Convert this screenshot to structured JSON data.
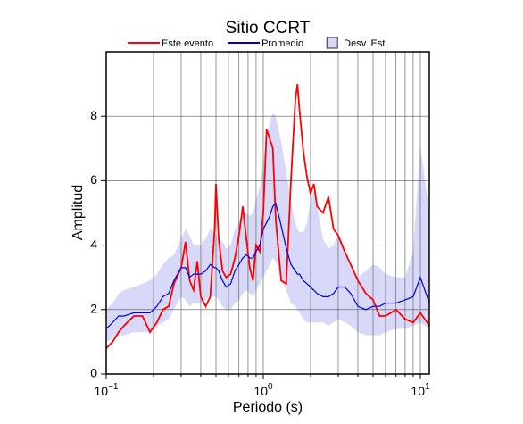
{
  "chart_data": {
    "type": "line",
    "title": "Sitio CCRT",
    "xlabel": "Periodo (s)",
    "ylabel": "Amplitud",
    "xlog": true,
    "grid": true,
    "xlim": [
      0.1,
      11.4
    ],
    "ylim": [
      0,
      10
    ],
    "xticks": [
      {
        "value": 0.1,
        "label": "10−1"
      },
      {
        "value": 1,
        "label": "100"
      },
      {
        "value": 10,
        "label": "101"
      }
    ],
    "xgrid": [
      0.2,
      0.3,
      0.4,
      0.5,
      0.6,
      0.7,
      0.8,
      0.9,
      2,
      3,
      4,
      5,
      6,
      7,
      8,
      9
    ],
    "yticks": [
      0,
      2,
      4,
      6,
      8
    ],
    "x": [
      0.1,
      0.11,
      0.12,
      0.13,
      0.15,
      0.17,
      0.19,
      0.21,
      0.23,
      0.25,
      0.27,
      0.3,
      0.32,
      0.34,
      0.36,
      0.38,
      0.4,
      0.43,
      0.46,
      0.49,
      0.5,
      0.52,
      0.55,
      0.58,
      0.62,
      0.66,
      0.7,
      0.74,
      0.78,
      0.82,
      0.86,
      0.9,
      0.95,
      1.0,
      1.05,
      1.1,
      1.15,
      1.2,
      1.3,
      1.4,
      1.5,
      1.6,
      1.65,
      1.7,
      1.8,
      1.9,
      2.0,
      2.1,
      2.2,
      2.4,
      2.6,
      2.8,
      3.0,
      3.3,
      3.6,
      4.0,
      4.5,
      5.0,
      5.5,
      6.0,
      7.0,
      8.0,
      9.0,
      10,
      11.4
    ],
    "series": [
      {
        "name": "Este evento",
        "color": "#ff0000",
        "values": [
          0.8,
          1.0,
          1.3,
          1.5,
          1.8,
          1.8,
          1.3,
          1.6,
          2.0,
          2.1,
          2.8,
          3.3,
          4.1,
          2.9,
          2.6,
          3.5,
          2.4,
          2.1,
          2.4,
          4.5,
          5.9,
          4.2,
          3.2,
          3.0,
          3.1,
          3.6,
          4.3,
          5.2,
          4.2,
          3.3,
          2.9,
          4.0,
          3.8,
          5.0,
          7.6,
          7.3,
          7.0,
          4.8,
          2.9,
          2.8,
          6.0,
          8.5,
          9.0,
          8.2,
          6.9,
          6.1,
          5.6,
          5.9,
          5.2,
          5.0,
          5.5,
          4.5,
          4.3,
          3.8,
          3.4,
          2.9,
          2.5,
          2.3,
          1.8,
          1.8,
          2.0,
          1.7,
          1.6,
          1.9,
          1.5
        ]
      },
      {
        "name": "Promedio",
        "color": "#0000dd",
        "values": [
          1.4,
          1.6,
          1.8,
          1.8,
          1.9,
          1.9,
          1.9,
          2.1,
          2.4,
          2.5,
          2.9,
          3.3,
          3.3,
          3.0,
          3.1,
          3.1,
          3.1,
          3.2,
          3.4,
          3.3,
          3.3,
          3.2,
          2.9,
          2.7,
          2.8,
          3.2,
          3.4,
          3.6,
          3.7,
          3.6,
          3.6,
          3.8,
          4.0,
          4.5,
          4.7,
          4.9,
          5.2,
          5.3,
          4.6,
          3.9,
          3.4,
          3.2,
          3.1,
          3.1,
          2.9,
          2.8,
          2.7,
          2.6,
          2.5,
          2.4,
          2.4,
          2.5,
          2.7,
          2.7,
          2.5,
          2.1,
          2.0,
          2.1,
          2.1,
          2.2,
          2.2,
          2.3,
          2.4,
          3.0,
          2.2
        ]
      },
      {
        "name": "Desv. Est.",
        "color": "#d8d8f8",
        "high": [
          2.0,
          2.2,
          2.5,
          2.6,
          2.7,
          2.8,
          2.9,
          3.1,
          3.4,
          3.6,
          3.7,
          4.2,
          4.5,
          4.3,
          4.0,
          4.0,
          4.0,
          4.2,
          4.5,
          4.4,
          4.3,
          4.2,
          4.1,
          3.9,
          4.0,
          4.5,
          4.7,
          5.0,
          5.0,
          4.9,
          5.0,
          5.4,
          5.8,
          6.6,
          7.2,
          7.8,
          8.1,
          8.0,
          7.2,
          6.3,
          5.3,
          4.7,
          4.5,
          4.4,
          4.4,
          4.7,
          5.4,
          5.7,
          5.2,
          4.2,
          3.9,
          4.0,
          4.3,
          3.8,
          3.4,
          3.0,
          3.2,
          3.4,
          3.3,
          3.1,
          3.0,
          3.0,
          3.8,
          7.1,
          5.0
        ],
        "low": [
          1.0,
          1.1,
          1.2,
          1.2,
          1.3,
          1.3,
          1.3,
          1.5,
          1.6,
          1.7,
          2.0,
          2.4,
          2.3,
          2.1,
          2.2,
          2.2,
          2.2,
          2.3,
          2.4,
          2.4,
          2.4,
          2.3,
          2.1,
          2.0,
          2.0,
          2.2,
          2.3,
          2.5,
          2.6,
          2.5,
          2.4,
          2.6,
          2.8,
          3.0,
          3.2,
          3.4,
          3.6,
          3.5,
          3.0,
          2.6,
          2.2,
          2.1,
          2.0,
          1.9,
          1.7,
          1.6,
          1.6,
          1.6,
          1.6,
          1.6,
          1.5,
          1.6,
          1.7,
          1.6,
          1.5,
          1.3,
          1.2,
          1.2,
          1.2,
          1.3,
          1.4,
          1.4,
          1.5,
          1.6,
          1.4
        ]
      }
    ]
  }
}
